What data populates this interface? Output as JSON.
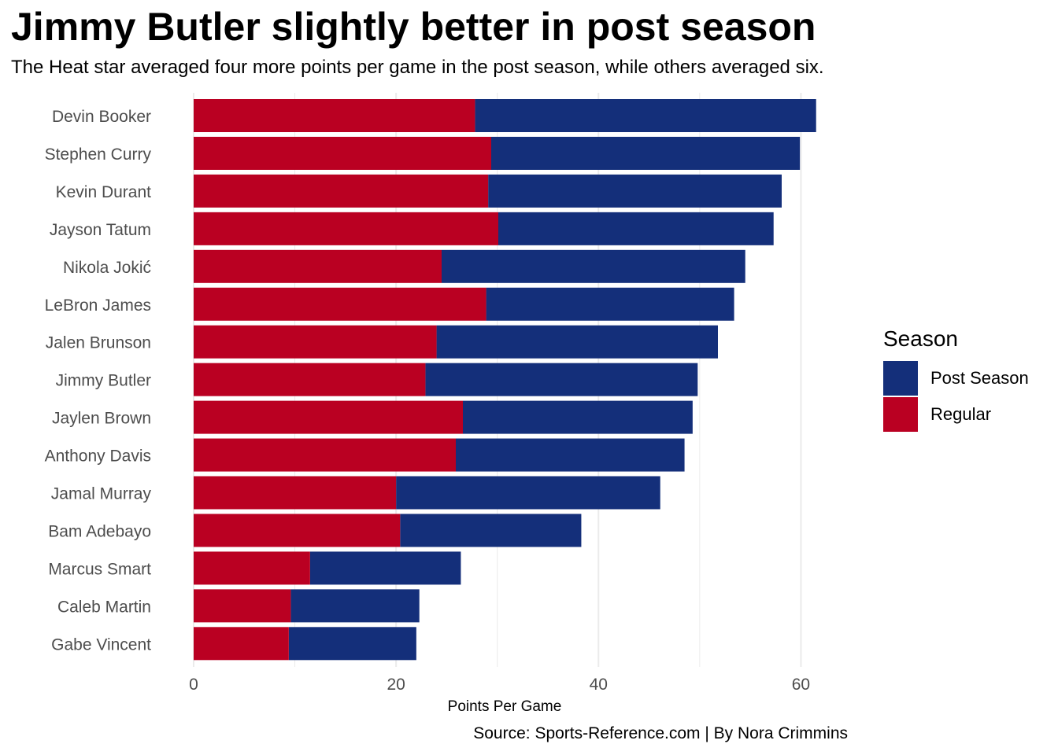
{
  "colors": {
    "post_season": "#142f7a",
    "regular": "#ba0022",
    "grid": "#ebebeb",
    "tick_text": "#4d4d4d"
  },
  "chart_data": {
    "type": "bar",
    "orientation": "horizontal",
    "stacked": true,
    "title": "Jimmy Butler slightly better in post season",
    "subtitle": "The Heat star averaged four more points per game in the post season, while others averaged six.",
    "xlabel": "Points Per Game",
    "ylabel": "",
    "caption": "Source: Sports-Reference.com | By Nora Crimmins",
    "xlim": [
      0,
      61.6
    ],
    "xticks": [
      0,
      20,
      40,
      60
    ],
    "grid": true,
    "legend": {
      "title": "Season",
      "position": "right",
      "entries": [
        "Post Season",
        "Regular"
      ]
    },
    "categories": [
      "Devin Booker",
      "Stephen Curry",
      "Kevin Durant",
      "Jayson Tatum",
      "Nikola Jokić",
      "LeBron James",
      "Jalen Brunson",
      "Jimmy Butler",
      "Jaylen Brown",
      "Anthony Davis",
      "Jamal Murray",
      "Bam Adebayo",
      "Marcus Smart",
      "Caleb Martin",
      "Gabe Vincent"
    ],
    "series": [
      {
        "name": "Regular",
        "values": [
          27.8,
          29.4,
          29.1,
          30.1,
          24.5,
          28.9,
          24.0,
          22.9,
          26.6,
          25.9,
          20.0,
          20.4,
          11.5,
          9.6,
          9.4
        ]
      },
      {
        "name": "Post Season",
        "values": [
          33.7,
          30.5,
          29.0,
          27.2,
          30.0,
          24.5,
          27.8,
          26.9,
          22.7,
          22.6,
          26.1,
          17.9,
          14.9,
          12.7,
          12.6
        ]
      }
    ]
  }
}
